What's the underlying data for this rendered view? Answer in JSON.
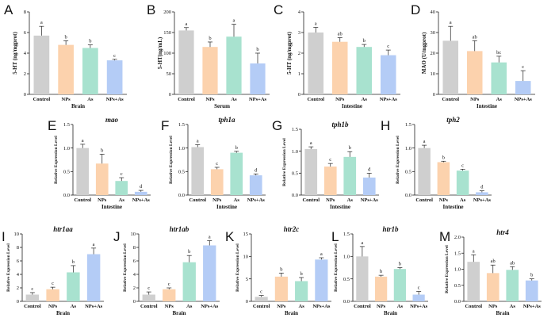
{
  "figure": {
    "group_colors": [
      "#cfcfcf",
      "#fcd2ad",
      "#a8e2cf",
      "#b4ccf6"
    ]
  },
  "chart_data": [
    {
      "id": "A",
      "type": "bar",
      "title": "",
      "ylabel": "5-HT (ng/mgprot)",
      "xlabel": "Brain",
      "categories": [
        "Control",
        "NPs",
        "As",
        "NPs+As"
      ],
      "ylim": [
        0,
        8
      ],
      "yticks": [
        "0",
        "2",
        "4",
        "6",
        "8"
      ],
      "values": [
        5.7,
        4.8,
        4.5,
        3.3
      ],
      "errors": [
        0.9,
        0.4,
        0.3,
        0.1
      ],
      "sig": [
        "a",
        "b",
        "b",
        "c"
      ]
    },
    {
      "id": "B",
      "type": "bar",
      "title": "",
      "ylabel": "5-HT(ng/mL)",
      "xlabel": "Serum",
      "categories": [
        "Control",
        "NPs",
        "As",
        "NPs+As"
      ],
      "ylim": [
        0,
        200
      ],
      "yticks": [
        "0",
        "50",
        "100",
        "150",
        "200"
      ],
      "values": [
        155,
        115,
        140,
        75
      ],
      "errors": [
        7,
        12,
        30,
        25
      ],
      "sig": [
        "a",
        "b",
        "a",
        "b"
      ]
    },
    {
      "id": "C",
      "type": "bar",
      "title": "",
      "ylabel": "5-HT (ng/mgprot)",
      "xlabel": "Intestine",
      "categories": [
        "Control",
        "NPs",
        "As",
        "NPs+As"
      ],
      "ylim": [
        0,
        4
      ],
      "yticks": [
        "0",
        "1",
        "2",
        "3",
        "4"
      ],
      "values": [
        3.0,
        2.55,
        2.3,
        1.9
      ],
      "errors": [
        0.25,
        0.2,
        0.12,
        0.25
      ],
      "sig": [
        "a",
        "ab",
        "b",
        "c"
      ]
    },
    {
      "id": "D",
      "type": "bar",
      "title": "",
      "ylabel": "MAO (U/mgprot)",
      "xlabel": "Intestine",
      "categories": [
        "Control",
        "NPs",
        "As",
        "NPs+As"
      ],
      "ylim": [
        0,
        40
      ],
      "yticks": [
        "0",
        "10",
        "20",
        "30",
        "40"
      ],
      "values": [
        26,
        21,
        15.5,
        6.5
      ],
      "errors": [
        7,
        5,
        3,
        5
      ],
      "sig": [
        "a",
        "ab",
        "bc",
        "c"
      ]
    },
    {
      "id": "E",
      "type": "bar",
      "title": "mao",
      "ylabel": "Relative Expression Level",
      "xlabel": "Intestine",
      "categories": [
        "Control",
        "NPs",
        "As",
        "NPs+As"
      ],
      "ylim": [
        0,
        1.5
      ],
      "yticks": [
        "0.0",
        "0.5",
        "1.0",
        "1.5"
      ],
      "values": [
        1.0,
        0.67,
        0.3,
        0.07
      ],
      "errors": [
        0.08,
        0.2,
        0.07,
        0.03
      ],
      "sig": [
        "a",
        "b",
        "c",
        "d"
      ]
    },
    {
      "id": "F",
      "type": "bar",
      "title": "tph1a",
      "ylabel": "Relative Expression Level",
      "xlabel": "Intestine",
      "categories": [
        "Control",
        "NPs",
        "As",
        "NPs+As"
      ],
      "ylim": [
        0,
        1.5
      ],
      "yticks": [
        "0.0",
        "0.5",
        "1.0",
        "1.5"
      ],
      "values": [
        1.02,
        0.55,
        0.9,
        0.42
      ],
      "errors": [
        0.05,
        0.04,
        0.03,
        0.03
      ],
      "sig": [
        "a",
        "c",
        "b",
        "d"
      ]
    },
    {
      "id": "G",
      "type": "bar",
      "title": "tph1b",
      "ylabel": "Relative Expression Level",
      "xlabel": "Intestine",
      "categories": [
        "Control",
        "NPs",
        "As",
        "NPs+As"
      ],
      "ylim": [
        0,
        1.5
      ],
      "yticks": [
        "0.0",
        "0.5",
        "1.0",
        "1.5"
      ],
      "values": [
        1.05,
        0.65,
        0.87,
        0.4
      ],
      "errors": [
        0.05,
        0.07,
        0.12,
        0.1
      ],
      "sig": [
        "a",
        "c",
        "b",
        "d"
      ]
    },
    {
      "id": "H",
      "type": "bar",
      "title": "tph2",
      "ylabel": "Relative Expression Level",
      "xlabel": "Intestine",
      "categories": [
        "Control",
        "NPs",
        "As",
        "NPs+As"
      ],
      "ylim": [
        0,
        1.5
      ],
      "yticks": [
        "0.0",
        "0.5",
        "1.0",
        "1.5"
      ],
      "values": [
        1.0,
        0.7,
        0.52,
        0.06
      ],
      "errors": [
        0.06,
        0.02,
        0.03,
        0.03
      ],
      "sig": [
        "a",
        "b",
        "c",
        "d"
      ]
    },
    {
      "id": "I",
      "type": "bar",
      "title": "htr1aa",
      "ylabel": "Relative Expression Level",
      "xlabel": "Brain",
      "categories": [
        "Control",
        "NPs",
        "As",
        "NPs+As"
      ],
      "ylim": [
        0,
        10
      ],
      "yticks": [
        "0",
        "2",
        "4",
        "6",
        "8",
        "10"
      ],
      "values": [
        1.0,
        1.8,
        4.3,
        7.0
      ],
      "errors": [
        0.3,
        0.3,
        1.0,
        0.9
      ],
      "sig": [
        "c",
        "c",
        "b",
        "a"
      ]
    },
    {
      "id": "J",
      "type": "bar",
      "title": "htr1ab",
      "ylabel": "Relative Expression Level",
      "xlabel": "Brain",
      "categories": [
        "Control",
        "NPs",
        "As",
        "NPs+As"
      ],
      "ylim": [
        0,
        10
      ],
      "yticks": [
        "0",
        "2",
        "4",
        "6",
        "8",
        "10"
      ],
      "values": [
        1.0,
        1.8,
        5.8,
        8.3
      ],
      "errors": [
        0.4,
        0.2,
        1.0,
        0.7
      ],
      "sig": [
        "c",
        "c",
        "b",
        "a"
      ]
    },
    {
      "id": "K",
      "type": "bar",
      "title": "htr2c",
      "ylabel": "Relative Expression Level",
      "xlabel": "Brain",
      "categories": [
        "Control",
        "NPs",
        "As",
        "NPs+As"
      ],
      "ylim": [
        0,
        15
      ],
      "yticks": [
        "0",
        "5",
        "10",
        "15"
      ],
      "values": [
        1.0,
        5.5,
        4.5,
        9.3
      ],
      "errors": [
        0.3,
        0.8,
        0.8,
        0.4
      ],
      "sig": [
        "c",
        "b",
        "b",
        "a"
      ]
    },
    {
      "id": "L",
      "type": "bar",
      "title": "htr1b",
      "ylabel": "Relative Expression Level",
      "xlabel": "Brain",
      "categories": [
        "Control",
        "NPs",
        "As",
        "NPs+As"
      ],
      "ylim": [
        0,
        1.5
      ],
      "yticks": [
        "0.0",
        "0.5",
        "1.0",
        "1.5"
      ],
      "values": [
        1.0,
        0.55,
        0.72,
        0.15
      ],
      "errors": [
        0.22,
        0.03,
        0.03,
        0.07
      ],
      "sig": [
        "a",
        "b",
        "b",
        "c"
      ]
    },
    {
      "id": "M",
      "type": "bar",
      "title": "htr4",
      "ylabel": "Relative Expression Level",
      "xlabel": "Brain",
      "categories": [
        "Control",
        "NPs",
        "As",
        "NPs+As"
      ],
      "ylim": [
        0,
        2.0
      ],
      "yticks": [
        "0.0",
        "0.5",
        "1.0",
        "1.5",
        "2.0"
      ],
      "values": [
        1.23,
        0.88,
        0.98,
        0.65
      ],
      "errors": [
        0.22,
        0.25,
        0.1,
        0.05
      ],
      "sig": [
        "a",
        "ab",
        "ab",
        "b"
      ]
    }
  ]
}
